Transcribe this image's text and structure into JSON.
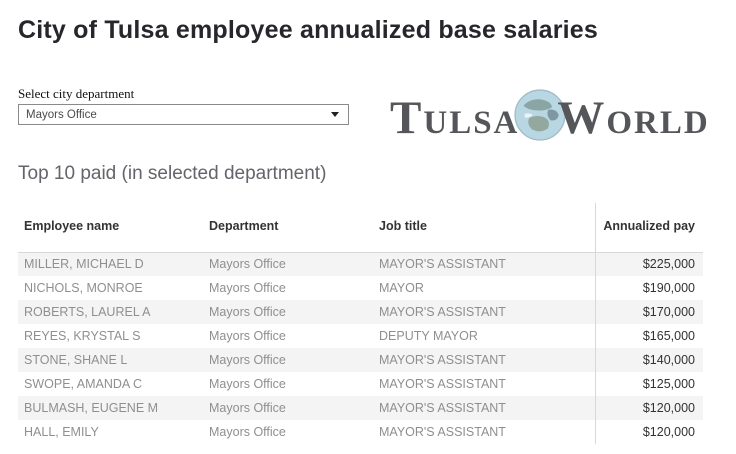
{
  "page": {
    "title": "City of Tulsa employee annualized base salaries"
  },
  "filter": {
    "label": "Select city department",
    "selected_value": "Mayors Office"
  },
  "logo": {
    "word1": "TULSA",
    "word2": "WORLD",
    "text_color": "#55565a",
    "globe_color": "#b9d7e2"
  },
  "section": {
    "title": "Top 10 paid (in selected department)"
  },
  "table": {
    "columns": [
      "Employee name",
      "Department",
      "Job title",
      "Annualized pay"
    ],
    "column_slugs": [
      "employee-name",
      "department",
      "job-title",
      "annualized-pay"
    ],
    "rows": [
      [
        "MILLER, MICHAEL D",
        "Mayors Office",
        "MAYOR'S ASSISTANT",
        "$225,000"
      ],
      [
        "NICHOLS, MONROE",
        "Mayors Office",
        "MAYOR",
        "$190,000"
      ],
      [
        "ROBERTS, LAUREL A",
        "Mayors Office",
        "MAYOR'S ASSISTANT",
        "$170,000"
      ],
      [
        "REYES, KRYSTAL S",
        "Mayors Office",
        "DEPUTY MAYOR",
        "$165,000"
      ],
      [
        "STONE, SHANE L",
        "Mayors Office",
        "MAYOR'S ASSISTANT",
        "$140,000"
      ],
      [
        "SWOPE, AMANDA C",
        "Mayors Office",
        "MAYOR'S ASSISTANT",
        "$125,000"
      ],
      [
        "BULMASH, EUGENE M",
        "Mayors Office",
        "MAYOR'S ASSISTANT",
        "$120,000"
      ],
      [
        "HALL, EMILY",
        "Mayors Office",
        "MAYOR'S ASSISTANT",
        "$120,000"
      ]
    ]
  },
  "colors": {
    "banding": "#f4f4f4",
    "header_text": "#333333",
    "body_text": "#8f8f8f",
    "pay_text": "#323232",
    "divider": "#d8d8d8"
  }
}
